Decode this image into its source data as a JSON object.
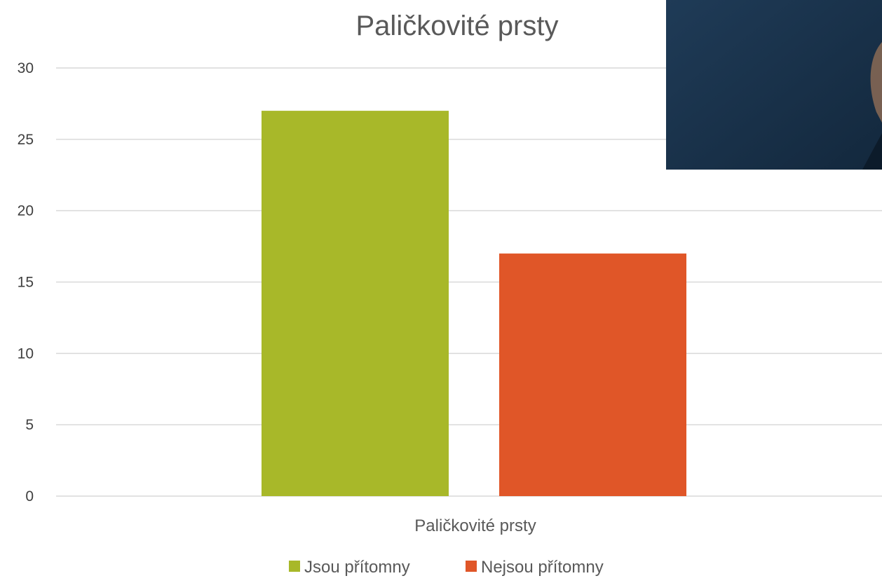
{
  "chart_data": {
    "type": "bar",
    "title": "Paličkovité prsty",
    "categories": [
      "Paličkovité prsty"
    ],
    "series": [
      {
        "name": "Jsou přítomny",
        "values": [
          27
        ],
        "color": "#a8b829"
      },
      {
        "name": "Nejsou přítomny",
        "values": [
          17
        ],
        "color": "#e05628"
      }
    ],
    "ylim": [
      0,
      30
    ],
    "yticks": [
      "0",
      "5",
      "10",
      "15",
      "20",
      "25",
      "30"
    ],
    "grid": true,
    "legend_position": "bottom",
    "xlabel": "",
    "ylabel": ""
  },
  "overlay_image": {
    "icon": "photo-inset",
    "colors": [
      "#1f3b57",
      "#13283d"
    ]
  }
}
